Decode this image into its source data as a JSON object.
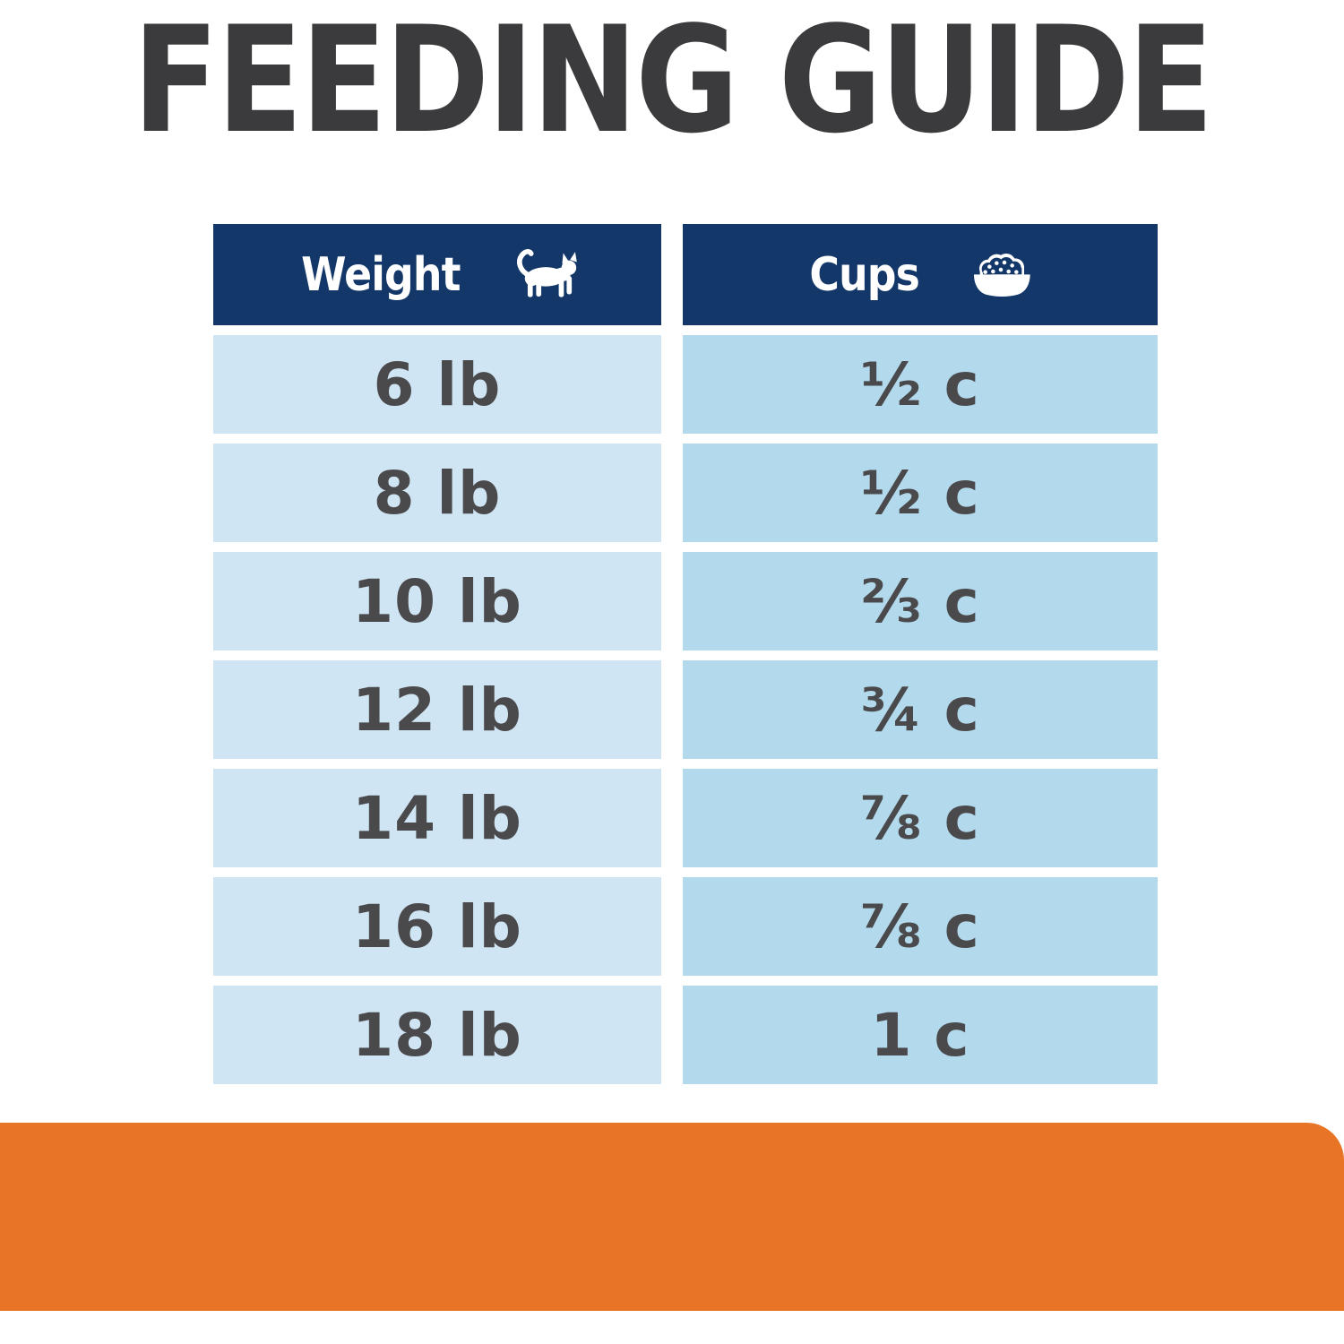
{
  "title": "FEEDING GUIDE",
  "table": {
    "columns": [
      {
        "label": "Weight",
        "icon": "cat-icon"
      },
      {
        "label": "Cups",
        "icon": "food-bowl-icon"
      }
    ],
    "rows": [
      {
        "weight": "6 lb",
        "cups": "½ c"
      },
      {
        "weight": "8 lb",
        "cups": "½ c"
      },
      {
        "weight": "10 lb",
        "cups": "⅔ c"
      },
      {
        "weight": "12 lb",
        "cups": "¾ c"
      },
      {
        "weight": "14 lb",
        "cups": "⅞ c"
      },
      {
        "weight": "16 lb",
        "cups": "⅞ c"
      },
      {
        "weight": "18 lb",
        "cups": "1 c"
      }
    ]
  },
  "colors": {
    "navy": "#133768",
    "row-left": "#cfe5f4",
    "row-right": "#b2d9ec",
    "orange": "#e87426",
    "title-color": "#3b3b3d",
    "cell-text": "#4a4a4c",
    "page-bg": "#ffffff"
  }
}
